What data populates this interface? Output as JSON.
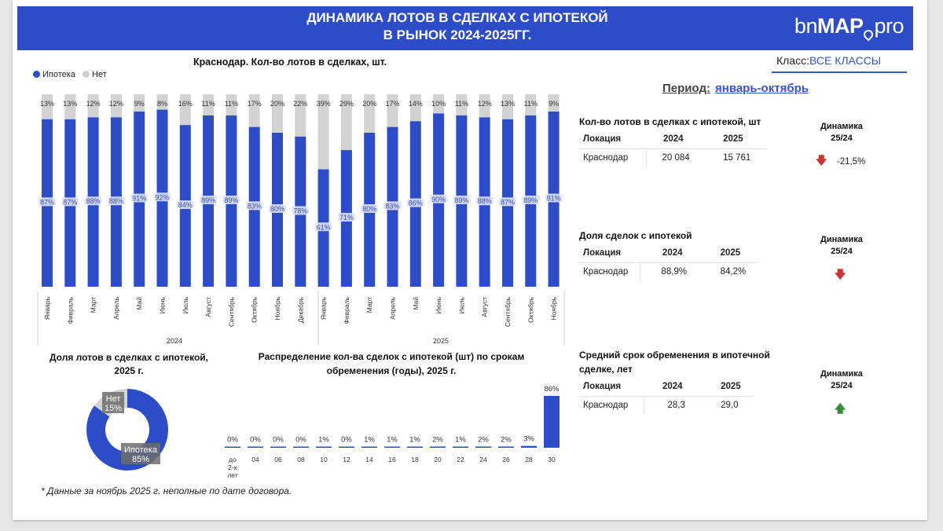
{
  "header": {
    "title_line1": "ДИНАМИКА  ЛОТОВ В СДЕЛКАХ С ИПОТЕКОЙ",
    "title_line2": "В РЫНОК 2024-2025ГГ.",
    "logo_part1": "bn",
    "logo_part2": "MAP",
    "logo_part3": "pro"
  },
  "class_filter": {
    "label": "Класс:",
    "value": "ВСЕ КЛАССЫ"
  },
  "period": {
    "label": "Период:",
    "value": "январь-октябрь"
  },
  "main_chart": {
    "title": "Краснодар. Кол-во лотов в сделках, шт.",
    "legend": [
      {
        "name": "Ипотека",
        "color": "#2d4dc8"
      },
      {
        "name": "Нет",
        "color": "#d3d3d3"
      }
    ]
  },
  "chart_data": [
    {
      "type": "bar",
      "stacked": true,
      "percent_stacked": true,
      "title": "Краснодар. Кол-во лотов в сделках, шт.",
      "group_labels": [
        "2024",
        "2025"
      ],
      "categories": [
        "Январь",
        "Февраль",
        "Март",
        "Апрель",
        "Май",
        "Июнь",
        "Июль",
        "Август",
        "Сентябрь",
        "Октябрь",
        "Ноябрь",
        "Декабрь",
        "Январь",
        "Февраль",
        "Март",
        "Апрель",
        "Май",
        "Июнь",
        "Июль",
        "Август",
        "Сентябрь",
        "Октябрь",
        "Ноябрь"
      ],
      "category_group": [
        "2024",
        "2024",
        "2024",
        "2024",
        "2024",
        "2024",
        "2024",
        "2024",
        "2024",
        "2024",
        "2024",
        "2024",
        "2025",
        "2025",
        "2025",
        "2025",
        "2025",
        "2025",
        "2025",
        "2025",
        "2025",
        "2025",
        "2025"
      ],
      "series": [
        {
          "name": "Ипотека",
          "color": "#2d4dc8",
          "values": [
            87,
            87,
            88,
            88,
            91,
            92,
            84,
            89,
            89,
            83,
            80,
            78,
            61,
            71,
            80,
            83,
            86,
            90,
            89,
            88,
            87,
            89,
            91
          ]
        },
        {
          "name": "Нет",
          "color": "#d3d3d3",
          "values": [
            13,
            13,
            12,
            12,
            9,
            8,
            16,
            11,
            11,
            17,
            20,
            22,
            39,
            29,
            20,
            17,
            14,
            10,
            11,
            12,
            13,
            11,
            9
          ]
        }
      ],
      "ylim": [
        0,
        100
      ],
      "legend_position": "top-left"
    },
    {
      "type": "pie",
      "donut": true,
      "title_line1": "Доля лотов в сделках с ипотекой,",
      "title_line2": "2025 г.",
      "slices": [
        {
          "name": "Ипотека",
          "value": 85,
          "label": "85%",
          "color": "#2d4dc8"
        },
        {
          "name": "Нет",
          "value": 15,
          "label": "15%",
          "color": "#d3d3d3"
        }
      ]
    },
    {
      "type": "bar",
      "title_line1": "Распределение кол-ва сделок с ипотекой (шт) по срокам",
      "title_line2": "обременения (годы), 2025 г.",
      "categories": [
        "до 2-х лет",
        "04",
        "06",
        "08",
        "10",
        "12",
        "14",
        "16",
        "18",
        "20",
        "22",
        "24",
        "26",
        "28",
        "30"
      ],
      "values": [
        0,
        0,
        0,
        0,
        1,
        0,
        1,
        1,
        1,
        2,
        1,
        2,
        2,
        3,
        86
      ],
      "value_labels": [
        "0%",
        "0%",
        "0%",
        "0%",
        "1%",
        "0%",
        "1%",
        "1%",
        "1%",
        "2%",
        "1%",
        "2%",
        "2%",
        "3%",
        "86%"
      ],
      "color": "#2d4dc8",
      "ylim": [
        0,
        86
      ]
    }
  ],
  "tables": {
    "lots": {
      "title": "Кол-во лотов в сделках с ипотекой, шт",
      "headers": [
        "Локация",
        "2024",
        "2025"
      ],
      "row": [
        "Краснодар",
        "20 084",
        "15 761"
      ],
      "dynamics_title_line1": "Динамика",
      "dynamics_title_line2": "25/24",
      "dynamics_value": "-21,5%",
      "dynamics_direction": "down"
    },
    "share": {
      "title": "Доля сделок с ипотекой",
      "headers": [
        "Локация",
        "2024",
        "2025"
      ],
      "row": [
        "Краснодар",
        "88,9%",
        "84,2%"
      ],
      "dynamics_title_line1": "Динамика",
      "dynamics_title_line2": "25/24",
      "dynamics_direction": "down"
    },
    "term": {
      "title_line1": "Средний срок обременения в ипотечной",
      "title_line2": "сделке, лет",
      "headers": [
        "Локация",
        "2024",
        "2025"
      ],
      "row": [
        "Краснодар",
        "28,3",
        "29,0"
      ],
      "dynamics_title_line1": "Динамика",
      "dynamics_title_line2": "25/24",
      "dynamics_direction": "up"
    }
  },
  "footnote": "* Данные за ноябрь 2025 г. неполные по дате договора."
}
